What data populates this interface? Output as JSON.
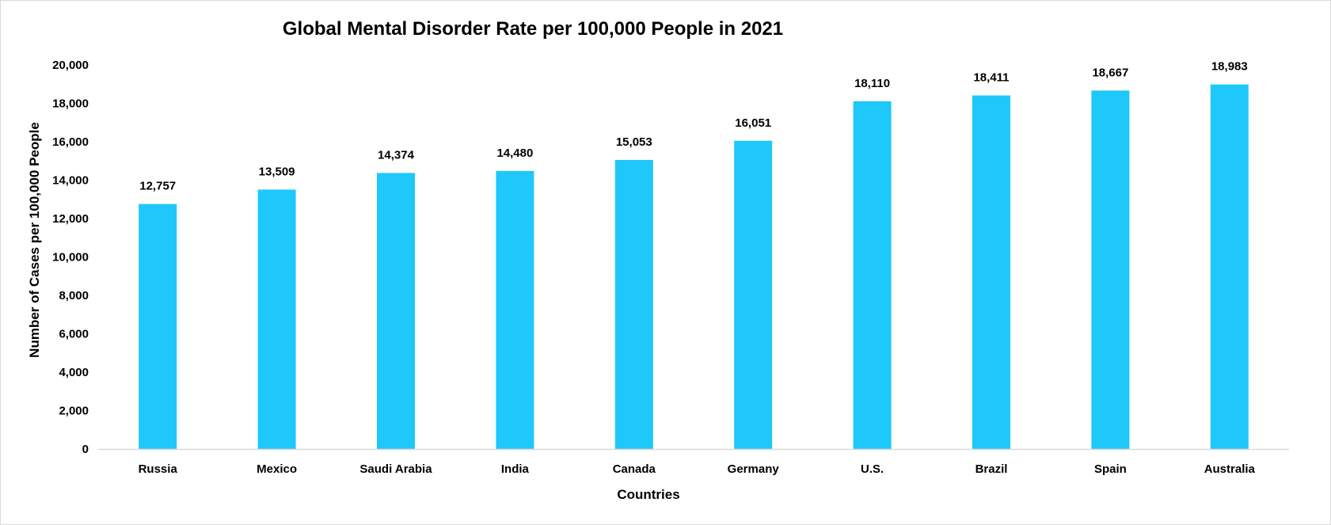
{
  "chart_data": {
    "type": "bar",
    "title": "Global Mental Disorder Rate per 100,000 People in 2021",
    "xlabel": "Countries",
    "ylabel": "Number of Cases per 100,000 People",
    "categories": [
      "Russia",
      "Mexico",
      "Saudi Arabia",
      "India",
      "Canada",
      "Germany",
      "U.S.",
      "Brazil",
      "Spain",
      "Australia"
    ],
    "values": [
      12757,
      13509,
      14374,
      14480,
      15053,
      16051,
      18110,
      18411,
      18667,
      18983
    ],
    "data_labels": [
      "12,757",
      "13,509",
      "14,374",
      "14,480",
      "15,053",
      "16,051",
      "18,110",
      "18,411",
      "18,667",
      "18,983"
    ],
    "ylim": [
      0,
      20000
    ],
    "yticks": [
      0,
      2000,
      4000,
      6000,
      8000,
      10000,
      12000,
      14000,
      16000,
      18000,
      20000
    ],
    "ytick_labels": [
      "0",
      "2,000",
      "4,000",
      "6,000",
      "8,000",
      "10,000",
      "12,000",
      "14,000",
      "16,000",
      "18,000",
      "20,000"
    ],
    "grid": false,
    "legend": "none",
    "bar_color": "#1EC8FA",
    "axis_color": "#d9d9d9"
  }
}
